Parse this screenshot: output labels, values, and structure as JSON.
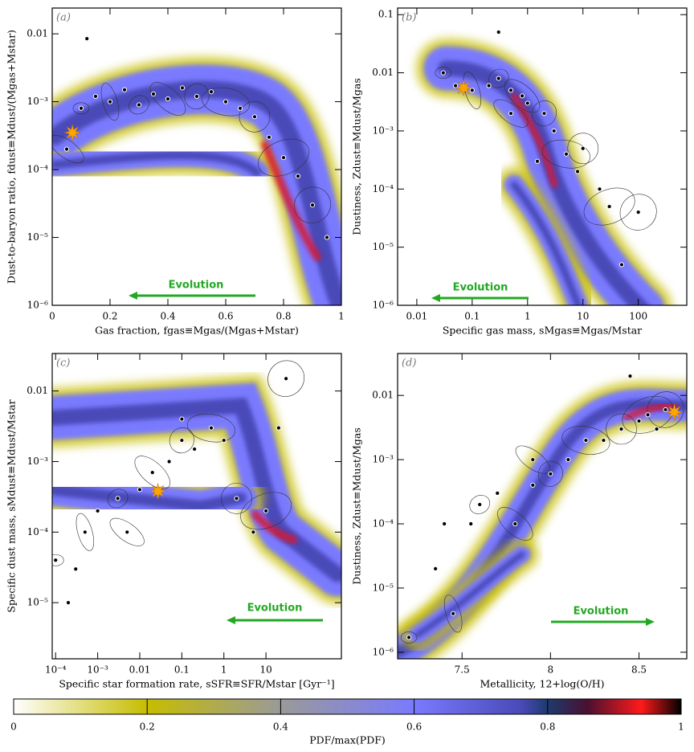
{
  "chart_data": [
    {
      "type": "scatter",
      "panel_label": "(a)",
      "xlabel": "Gas fraction, fgas≡Mgas/(Mgas+Mstar)",
      "ylabel": "Dust-to-baryon ratio, fdust≡Mdust/(Mgas+Mstar)",
      "xscale": "linear",
      "yscale": "log",
      "xlim": [
        0,
        1
      ],
      "ylim": [
        1e-06,
        0.024
      ],
      "xticks": [
        0,
        0.2,
        0.4,
        0.6,
        0.8,
        1
      ],
      "yticks": [
        {
          "value": 1e-06,
          "label": "10⁻⁶"
        },
        {
          "value": 1e-05,
          "label": "10⁻⁵"
        },
        {
          "value": 0.0001,
          "label": "10⁻⁴"
        },
        {
          "value": 0.001,
          "label": "10⁻³"
        },
        0.01
      ],
      "x": [
        0.1,
        0.15,
        0.2,
        0.25,
        0.3,
        0.35,
        0.4,
        0.45,
        0.5,
        0.55,
        0.6,
        0.65,
        0.7,
        0.75,
        0.8,
        0.85,
        0.9,
        0.95,
        0.05,
        0.12
      ],
      "y": [
        0.0008,
        0.0012,
        0.001,
        0.0015,
        0.0009,
        0.0013,
        0.0011,
        0.0016,
        0.0012,
        0.0014,
        0.001,
        0.0008,
        0.0006,
        0.0003,
        0.00015,
        8e-05,
        3e-05,
        1e-05,
        0.0002,
        0.0085
      ],
      "color": "#000000",
      "star": {
        "x": 0.07,
        "y": 0.00035,
        "color": "#ffa500"
      },
      "annotation": "Evolution",
      "annotation_color": "#22a822"
    },
    {
      "type": "scatter",
      "panel_label": "(b)",
      "xlabel": "Specific gas mass, sMgas≡Mgas/Mstar",
      "ylabel": "Dustiness, Zdust≡Mdust/Mgas",
      "xscale": "log",
      "yscale": "log",
      "xlim": [
        0.0045,
        750
      ],
      "ylim": [
        1e-06,
        0.13
      ],
      "xticks": [
        0.01,
        0.1,
        1,
        10,
        100
      ],
      "yticks": [
        {
          "value": 1e-06,
          "label": "10⁻⁶"
        },
        {
          "value": 1e-05,
          "label": "10⁻⁵"
        },
        {
          "value": 0.0001,
          "label": "10⁻⁴"
        },
        {
          "value": 0.001,
          "label": "10⁻³"
        },
        0.01,
        0.1
      ],
      "x": [
        0.03,
        0.05,
        0.1,
        0.2,
        0.3,
        0.5,
        0.8,
        1,
        2,
        3,
        5,
        8,
        10,
        20,
        30,
        50,
        100,
        0.3,
        0.5,
        1.5
      ],
      "y": [
        0.01,
        0.006,
        0.005,
        0.006,
        0.008,
        0.005,
        0.004,
        0.003,
        0.002,
        0.001,
        0.0004,
        0.0002,
        0.0005,
        0.0001,
        5e-05,
        5e-06,
        4e-05,
        0.05,
        0.002,
        0.0003
      ],
      "color": "#000000",
      "star": {
        "x": 0.07,
        "y": 0.0055,
        "color": "#ffa500"
      },
      "annotation": "Evolution",
      "annotation_color": "#22a822"
    },
    {
      "type": "scatter",
      "panel_label": "(c)",
      "xlabel": "Specific star formation rate, sSFR≡SFR/Mstar [Gyr⁻¹]",
      "ylabel": "Specific dust mass, sMdust≡Mdust/Mstar",
      "xscale": "log",
      "yscale": "log",
      "xlim": [
        8.3e-05,
        620
      ],
      "ylim": [
        1.6e-06,
        0.034
      ],
      "xticks": [
        {
          "value": 0.0001,
          "label": "10⁻⁴"
        },
        {
          "value": 0.001,
          "label": "10⁻³"
        },
        0.01,
        0.1,
        1,
        10
      ],
      "yticks": [
        {
          "value": 1e-05,
          "label": "10⁻⁵"
        },
        {
          "value": 0.0001,
          "label": "10⁻⁴"
        },
        {
          "value": 0.001,
          "label": "10⁻³"
        },
        0.01
      ],
      "x": [
        0.0001,
        0.0002,
        0.0005,
        0.001,
        0.003,
        0.01,
        0.02,
        0.05,
        0.1,
        0.2,
        0.5,
        1,
        2,
        5,
        10,
        20,
        30,
        0.0003,
        0.005,
        0.1
      ],
      "y": [
        4e-05,
        1e-05,
        0.0001,
        0.0002,
        0.0003,
        0.0004,
        0.0007,
        0.001,
        0.002,
        0.0015,
        0.003,
        0.002,
        0.0003,
        0.0001,
        0.0002,
        0.003,
        0.015,
        3e-05,
        0.0001,
        0.004
      ],
      "color": "#000000",
      "star": {
        "x": 0.027,
        "y": 0.00038,
        "color": "#ffa500"
      },
      "annotation": "Evolution",
      "annotation_color": "#22a822"
    },
    {
      "type": "scatter",
      "panel_label": "(d)",
      "xlabel": "Metallicity, 12+log(O/H)",
      "ylabel": "Dustiness, Zdust≡Mdust/Mgas",
      "xscale": "linear",
      "yscale": "log",
      "xlim": [
        7.136,
        8.77
      ],
      "ylim": [
        7.9e-07,
        0.045
      ],
      "xticks": [
        7.5,
        8,
        8.5
      ],
      "yticks": [
        {
          "value": 1e-06,
          "label": "10⁻⁶"
        },
        {
          "value": 1e-05,
          "label": "10⁻⁵"
        },
        {
          "value": 0.0001,
          "label": "10⁻⁴"
        },
        {
          "value": 0.001,
          "label": "10⁻³"
        },
        0.01
      ],
      "x": [
        7.2,
        7.35,
        7.45,
        7.55,
        7.6,
        7.7,
        7.8,
        7.9,
        8.0,
        8.1,
        8.2,
        8.3,
        8.4,
        8.5,
        8.55,
        8.6,
        8.65,
        7.4,
        7.9,
        8.45
      ],
      "y": [
        1.7e-06,
        2e-05,
        4e-06,
        0.0001,
        0.0002,
        0.0003,
        0.0001,
        0.0004,
        0.0006,
        0.001,
        0.002,
        0.002,
        0.003,
        0.004,
        0.005,
        0.003,
        0.006,
        0.0001,
        0.001,
        0.02
      ],
      "color": "#000000",
      "star": {
        "x": 8.7,
        "y": 0.0055,
        "color": "#ffa500"
      },
      "annotation": "Evolution",
      "annotation_color": "#22a822"
    },
    {
      "type": "colorbar",
      "label": "PDF/max(PDF)",
      "xlim": [
        0,
        1
      ],
      "xticks": [
        0,
        0.2,
        0.4,
        0.6,
        0.8,
        1
      ]
    }
  ]
}
